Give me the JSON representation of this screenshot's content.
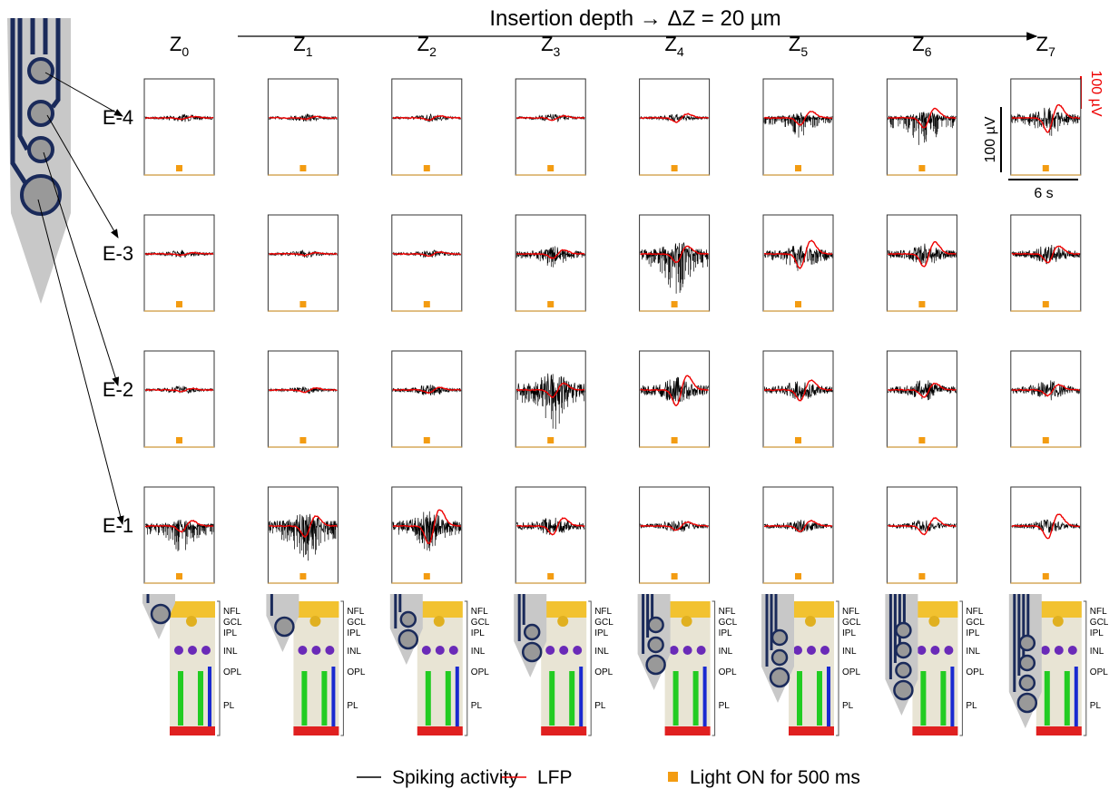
{
  "title": "Insertion depth → ΔZ = 20 µm",
  "columns": [
    [
      "Z",
      "0"
    ],
    [
      "Z",
      "1"
    ],
    [
      "Z",
      "2"
    ],
    [
      "Z",
      "3"
    ],
    [
      "Z",
      "4"
    ],
    [
      "Z",
      "5"
    ],
    [
      "Z",
      "6"
    ],
    [
      "Z",
      "7"
    ]
  ],
  "rows": [
    "E-4",
    "E-3",
    "E-2",
    "E-1"
  ],
  "scale_bars": {
    "spike": "100 µV",
    "lfp": "100 µV",
    "time": "6 s"
  },
  "layers": [
    "NFL",
    "GCL",
    "IPL",
    "INL",
    "OPL",
    "PL"
  ],
  "legend": {
    "spike": "Spiking activity",
    "lfp": "LFP",
    "light": "Light ON for 500 ms"
  }
}
